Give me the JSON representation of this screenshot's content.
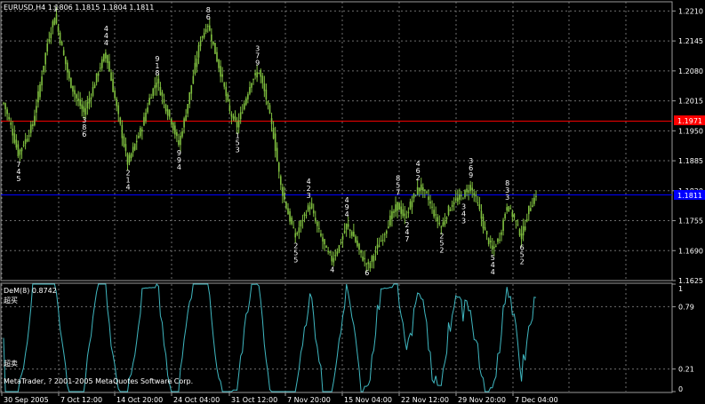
{
  "window": {
    "title_line": "EURUSD,H4  1.1806 1.1815 1.1804 1.1811",
    "copyright": "MetaTrader, ? 2001-2005 MetaQuotes Software Corp."
  },
  "colors": {
    "background": "#000000",
    "grid": "#6e6e6e",
    "candle": "#7fbf3f",
    "dem_line": "#3fb7c0",
    "red_line": "#ff0000",
    "blue_line": "#0000ff",
    "fractal_number": "#ffd000"
  },
  "main_axis": {
    "price_labels": [
      "1.2210",
      "1.2145",
      "1.2080",
      "1.2015",
      "1.1950",
      "1.1885",
      "1.1820",
      "1.1755",
      "1.1690",
      "1.1625"
    ],
    "red_level_label": "1.1971",
    "blue_level_label": "1.1811"
  },
  "indicator": {
    "label": "DeM(8) 0.8742",
    "overbought_label": "超买",
    "oversold_label": "超卖",
    "axis_labels": [
      "1",
      "0.79",
      "0.21",
      "0"
    ]
  },
  "time_axis": {
    "labels": [
      "30 Sep 2005",
      "7 Oct 12:00",
      "14 Oct 20:00",
      "24 Oct 04:00",
      "31 Oct 12:00",
      "7 Nov 20:00",
      "15 Nov 04:00",
      "22 Nov 12:00",
      "29 Nov 20:00",
      "7 Dec 04:00"
    ]
  },
  "chart_data": {
    "type": "candlestick-with-oscillator",
    "symbol": "EURUSD",
    "timeframe": "H4",
    "last_bar": {
      "open": 1.1806,
      "high": 1.1815,
      "low": 1.1804,
      "close": 1.1811
    },
    "ylim_price": [
      1.1625,
      1.223
    ],
    "horizontal_levels": [
      1.1971,
      1.1811
    ],
    "close_trace": [
      [
        0,
        1.201
      ],
      [
        4,
        1.196
      ],
      [
        8,
        1.19
      ],
      [
        12,
        1.193
      ],
      [
        16,
        1.1965
      ],
      [
        20,
        1.205
      ],
      [
        24,
        1.214
      ],
      [
        28,
        1.22
      ],
      [
        32,
        1.213
      ],
      [
        36,
        1.206
      ],
      [
        40,
        1.202
      ],
      [
        44,
        1.199
      ],
      [
        48,
        1.203
      ],
      [
        52,
        1.208
      ],
      [
        56,
        1.212
      ],
      [
        60,
        1.204
      ],
      [
        64,
        1.196
      ],
      [
        68,
        1.188
      ],
      [
        72,
        1.192
      ],
      [
        76,
        1.196
      ],
      [
        80,
        1.202
      ],
      [
        84,
        1.206
      ],
      [
        88,
        1.201
      ],
      [
        92,
        1.197
      ],
      [
        96,
        1.192
      ],
      [
        100,
        1.199
      ],
      [
        104,
        1.207
      ],
      [
        108,
        1.215
      ],
      [
        112,
        1.218
      ],
      [
        116,
        1.212
      ],
      [
        120,
        1.206
      ],
      [
        124,
        1.199
      ],
      [
        128,
        1.196
      ],
      [
        132,
        1.201
      ],
      [
        136,
        1.206
      ],
      [
        140,
        1.208
      ],
      [
        144,
        1.202
      ],
      [
        148,
        1.194
      ],
      [
        152,
        1.183
      ],
      [
        156,
        1.177
      ],
      [
        160,
        1.172
      ],
      [
        164,
        1.176
      ],
      [
        168,
        1.179
      ],
      [
        172,
        1.174
      ],
      [
        176,
        1.17
      ],
      [
        180,
        1.167
      ],
      [
        184,
        1.17
      ],
      [
        188,
        1.1745
      ],
      [
        192,
        1.172
      ],
      [
        196,
        1.168
      ],
      [
        200,
        1.1655
      ],
      [
        204,
        1.169
      ],
      [
        208,
        1.172
      ],
      [
        212,
        1.176
      ],
      [
        216,
        1.179
      ],
      [
        220,
        1.176
      ],
      [
        224,
        1.18
      ],
      [
        228,
        1.183
      ],
      [
        232,
        1.181
      ],
      [
        236,
        1.177
      ],
      [
        240,
        1.174
      ],
      [
        244,
        1.178
      ],
      [
        248,
        1.18
      ],
      [
        252,
        1.181
      ],
      [
        256,
        1.183
      ],
      [
        260,
        1.179
      ],
      [
        264,
        1.173
      ],
      [
        268,
        1.169
      ],
      [
        272,
        1.172
      ],
      [
        276,
        1.179
      ],
      [
        280,
        1.176
      ],
      [
        284,
        1.172
      ],
      [
        288,
        1.178
      ],
      [
        292,
        1.1811
      ]
    ],
    "demarker_level_lines": [
      0.79,
      0.21
    ],
    "demarker_last": 0.8742
  }
}
